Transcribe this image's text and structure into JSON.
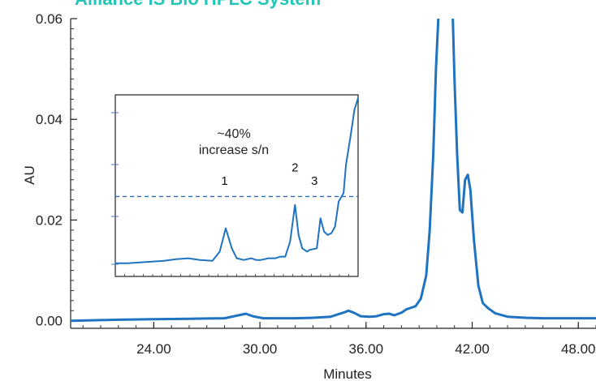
{
  "chart_data": {
    "type": "line",
    "title": "Alliance iS Bio HPLC System",
    "xlabel": "Minutes",
    "ylabel": "AU",
    "xlim": [
      19.3,
      49.0
    ],
    "ylim": [
      -0.0015,
      0.06
    ],
    "xticks": [
      "24.00",
      "30.00",
      "36.00",
      "42.00",
      "48.00"
    ],
    "xtick_values": [
      24,
      30,
      36,
      42,
      48
    ],
    "yticks": [
      "0.00",
      "0.02",
      "0.04",
      "0.06"
    ],
    "ytick_values": [
      0.0,
      0.02,
      0.04,
      0.06
    ],
    "grid": false,
    "colors": {
      "line": "#1f73c0",
      "dashed": "#2a6db5",
      "title": "#22c7b8"
    },
    "series": [
      {
        "x": [
          19.3,
          22.0,
          24.0,
          26.0,
          28.0,
          28.8,
          29.2,
          29.6,
          30.2,
          31.0,
          32.0,
          33.0,
          34.0,
          34.8,
          35.0,
          35.3,
          35.7,
          36.2,
          36.6,
          37.0,
          37.3,
          37.6,
          38.0,
          38.3,
          38.8,
          39.1,
          39.4,
          39.6,
          39.8,
          39.95,
          40.1,
          40.2,
          40.6,
          40.9,
          41.0,
          41.15,
          41.3,
          41.45,
          41.6,
          41.75,
          41.9,
          42.1,
          42.35,
          42.6,
          42.9,
          43.3,
          44.0,
          45.0,
          46.0,
          47.0,
          48.0,
          49.0
        ],
        "y": [
          0.0,
          0.0002,
          0.0003,
          0.0004,
          0.0005,
          0.0011,
          0.0014,
          0.0009,
          0.0005,
          0.0005,
          0.0005,
          0.0006,
          0.0008,
          0.0017,
          0.002,
          0.0016,
          0.0009,
          0.0008,
          0.0009,
          0.0013,
          0.0014,
          0.0011,
          0.0016,
          0.0023,
          0.0029,
          0.0044,
          0.009,
          0.018,
          0.033,
          0.05,
          0.061,
          0.065,
          0.065,
          0.061,
          0.048,
          0.033,
          0.022,
          0.0215,
          0.028,
          0.029,
          0.026,
          0.016,
          0.007,
          0.0035,
          0.0025,
          0.0015,
          0.0008,
          0.0006,
          0.0005,
          0.0005,
          0.0005,
          0.0005
        ]
      }
    ],
    "inset": {
      "type": "line",
      "ticks": "none",
      "annotation": "~40%\nincrease s/n",
      "dashed_threshold": 0.43,
      "peak_labels": [
        {
          "text": "1",
          "x": 0.45,
          "y": 0.47
        },
        {
          "text": "2",
          "x": 0.74,
          "y": 0.55
        },
        {
          "text": "3",
          "x": 0.82,
          "y": 0.47
        }
      ],
      "series": [
        {
          "x": [
            0.0,
            0.05,
            0.1,
            0.15,
            0.2,
            0.25,
            0.3,
            0.35,
            0.4,
            0.43,
            0.455,
            0.48,
            0.5,
            0.53,
            0.56,
            0.58,
            0.6,
            0.63,
            0.66,
            0.68,
            0.7,
            0.72,
            0.74,
            0.755,
            0.77,
            0.79,
            0.8,
            0.83,
            0.845,
            0.86,
            0.875,
            0.89,
            0.905,
            0.92,
            0.94,
            0.95,
            0.97,
            0.985,
            1.0
          ],
          "y": [
            0.03,
            0.03,
            0.035,
            0.04,
            0.045,
            0.055,
            0.06,
            0.05,
            0.045,
            0.1,
            0.24,
            0.12,
            0.06,
            0.05,
            0.06,
            0.05,
            0.05,
            0.06,
            0.06,
            0.07,
            0.07,
            0.16,
            0.38,
            0.2,
            0.12,
            0.1,
            0.11,
            0.12,
            0.3,
            0.22,
            0.2,
            0.21,
            0.25,
            0.4,
            0.45,
            0.62,
            0.8,
            0.95,
            1.02
          ]
        }
      ]
    }
  }
}
